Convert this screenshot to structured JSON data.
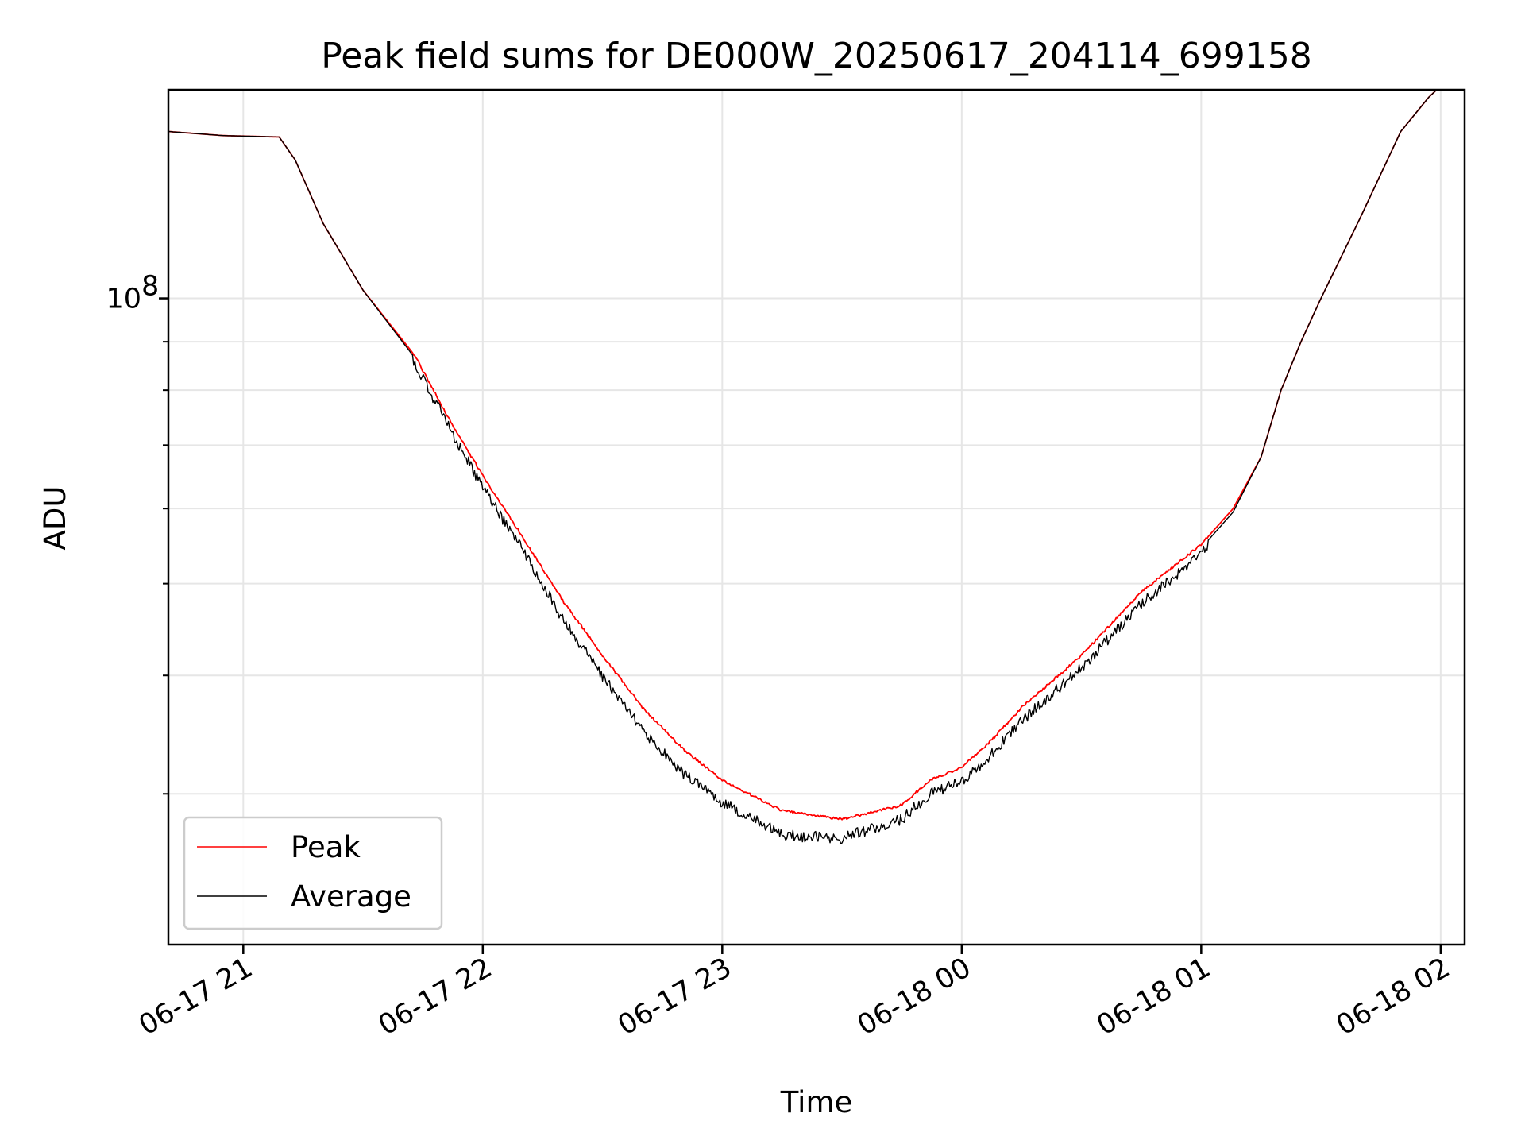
{
  "chart_data": {
    "type": "line",
    "title": "Peak field sums for DE000W_20250617_204114_699158",
    "xlabel": "Time",
    "ylabel": "ADU",
    "yscale": "log",
    "xlim": [
      "2025-06-17T20:41:14",
      "2025-06-18T02:06:00"
    ],
    "ylim": [
      20800000,
      166000000
    ],
    "grid": true,
    "legend_placement": "lower-left",
    "x_ticks": [
      {
        "t": "2025-06-17T21:00:00",
        "label": "06-17 21"
      },
      {
        "t": "2025-06-17T22:00:00",
        "label": "06-17 22"
      },
      {
        "t": "2025-06-17T23:00:00",
        "label": "06-17 23"
      },
      {
        "t": "2025-06-18T00:00:00",
        "label": "06-18 00"
      },
      {
        "t": "2025-06-18T01:00:00",
        "label": "06-18 01"
      },
      {
        "t": "2025-06-18T02:00:00",
        "label": "06-18 02"
      }
    ],
    "y_major_ticks": [
      {
        "value": 100000000,
        "base": "10",
        "exp": "8"
      }
    ],
    "y_minor_ticks": [
      30000000,
      40000000,
      50000000,
      60000000,
      70000000,
      80000000,
      90000000,
      200000000
    ],
    "series": [
      {
        "name": "Peak",
        "color": "#ff0000",
        "points": [
          [
            "2025-06-17T20:41:14",
            150000000
          ],
          [
            "2025-06-17T20:55:00",
            148500000
          ],
          [
            "2025-06-17T21:09:00",
            148000000
          ],
          [
            "2025-06-17T21:13:00",
            140000000
          ],
          [
            "2025-06-17T21:20:00",
            120000000
          ],
          [
            "2025-06-17T21:30:00",
            102000000
          ],
          [
            "2025-06-17T21:43:00",
            87000000
          ],
          [
            "2025-06-17T21:52:00",
            74000000
          ],
          [
            "2025-06-17T22:00:00",
            65000000
          ],
          [
            "2025-06-17T22:10:00",
            56000000
          ],
          [
            "2025-06-17T22:20:00",
            48000000
          ],
          [
            "2025-06-17T22:30:00",
            42000000
          ],
          [
            "2025-06-17T22:40:00",
            37000000
          ],
          [
            "2025-06-17T22:50:00",
            33500000
          ],
          [
            "2025-06-17T23:00:00",
            31000000
          ],
          [
            "2025-06-17T23:15:00",
            28800000
          ],
          [
            "2025-06-17T23:30:00",
            28200000
          ],
          [
            "2025-06-17T23:45:00",
            29200000
          ],
          [
            "2025-06-17T23:52:00",
            31000000
          ],
          [
            "2025-06-18T00:00:00",
            32000000
          ],
          [
            "2025-06-18T00:07:00",
            34000000
          ],
          [
            "2025-06-18T00:15:00",
            37000000
          ],
          [
            "2025-06-18T00:30:00",
            42000000
          ],
          [
            "2025-06-18T00:45:00",
            49000000
          ],
          [
            "2025-06-18T01:00:00",
            55000000
          ],
          [
            "2025-06-18T01:08:00",
            60000000
          ],
          [
            "2025-06-18T01:15:00",
            68000000
          ],
          [
            "2025-06-18T01:20:00",
            80000000
          ],
          [
            "2025-06-18T01:25:00",
            90000000
          ],
          [
            "2025-06-18T01:30:00",
            100000000
          ],
          [
            "2025-06-18T01:40:00",
            122000000
          ],
          [
            "2025-06-18T01:50:00",
            150000000
          ],
          [
            "2025-06-18T01:57:00",
            163000000
          ],
          [
            "2025-06-18T01:59:00",
            166000000
          ]
        ]
      },
      {
        "name": "Average",
        "color": "#000000",
        "points": [
          [
            "2025-06-17T20:41:14",
            150000000
          ],
          [
            "2025-06-17T20:55:00",
            148500000
          ],
          [
            "2025-06-17T21:09:00",
            148000000
          ],
          [
            "2025-06-17T21:13:00",
            140000000
          ],
          [
            "2025-06-17T21:20:00",
            120000000
          ],
          [
            "2025-06-17T21:30:00",
            102000000
          ],
          [
            "2025-06-17T21:43:00",
            86500000
          ],
          [
            "2025-06-17T21:52:00",
            73500000
          ],
          [
            "2025-06-17T22:00:00",
            64000000
          ],
          [
            "2025-06-17T22:10:00",
            55000000
          ],
          [
            "2025-06-17T22:20:00",
            46500000
          ],
          [
            "2025-06-17T22:30:00",
            40500000
          ],
          [
            "2025-06-17T22:40:00",
            35500000
          ],
          [
            "2025-06-17T22:50:00",
            32000000
          ],
          [
            "2025-06-17T23:00:00",
            29800000
          ],
          [
            "2025-06-17T23:15:00",
            27500000
          ],
          [
            "2025-06-17T23:30:00",
            27300000
          ],
          [
            "2025-06-17T23:45:00",
            28600000
          ],
          [
            "2025-06-17T23:52:00",
            30400000
          ],
          [
            "2025-06-18T00:00:00",
            31300000
          ],
          [
            "2025-06-18T00:07:00",
            33300000
          ],
          [
            "2025-06-18T00:15:00",
            36300000
          ],
          [
            "2025-06-18T00:30:00",
            41300000
          ],
          [
            "2025-06-18T00:45:00",
            48300000
          ],
          [
            "2025-06-18T01:00:00",
            54500000
          ],
          [
            "2025-06-18T01:08:00",
            59500000
          ],
          [
            "2025-06-18T01:15:00",
            68000000
          ],
          [
            "2025-06-18T01:20:00",
            80000000
          ],
          [
            "2025-06-18T01:25:00",
            90000000
          ],
          [
            "2025-06-18T01:30:00",
            100000000
          ],
          [
            "2025-06-18T01:40:00",
            122000000
          ],
          [
            "2025-06-18T01:50:00",
            150000000
          ],
          [
            "2025-06-18T01:57:00",
            163000000
          ],
          [
            "2025-06-18T01:59:00",
            166000000
          ]
        ]
      }
    ]
  }
}
